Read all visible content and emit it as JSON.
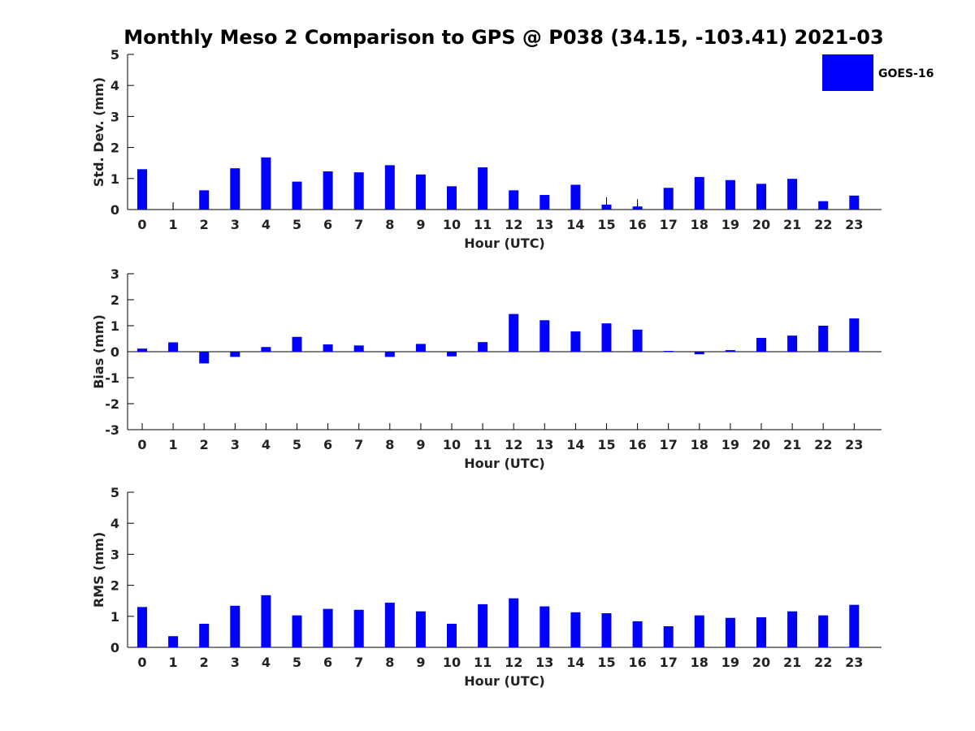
{
  "figure": {
    "title": "Monthly Meso 2 Comparison to GPS @ P038 (34.15, -103.41) 2021-03"
  },
  "legend": {
    "label": "GOES-16",
    "placement": "top-right",
    "color": "#0000ff"
  },
  "chart_data": [
    {
      "type": "bar",
      "xlabel": "Hour (UTC)",
      "ylabel": "Std. Dev. (mm)",
      "ylim": [
        0,
        5
      ],
      "yticks": [
        "0",
        "1",
        "2",
        "3",
        "4",
        "5"
      ],
      "categories": [
        "0",
        "1",
        "2",
        "3",
        "4",
        "5",
        "6",
        "7",
        "8",
        "9",
        "10",
        "11",
        "12",
        "13",
        "14",
        "15",
        "16",
        "17",
        "18",
        "19",
        "20",
        "21",
        "22",
        "23"
      ],
      "series": [
        {
          "name": "GOES-16",
          "color": "#0000ff",
          "values": [
            1.3,
            0.0,
            0.62,
            1.33,
            1.68,
            0.9,
            1.23,
            1.2,
            1.43,
            1.13,
            0.75,
            1.36,
            0.62,
            0.47,
            0.8,
            0.16,
            0.1,
            0.7,
            1.05,
            0.95,
            0.83,
            0.99,
            0.27,
            0.45
          ]
        }
      ],
      "error_caps": [
        1,
        15,
        16
      ]
    },
    {
      "type": "bar",
      "xlabel": "Hour (UTC)",
      "ylabel": "Bias (mm)",
      "ylim": [
        -3,
        3
      ],
      "yticks": [
        "-3",
        "-2",
        "-1",
        "0",
        "1",
        "2",
        "3"
      ],
      "categories": [
        "0",
        "1",
        "2",
        "3",
        "4",
        "5",
        "6",
        "7",
        "8",
        "9",
        "10",
        "11",
        "12",
        "13",
        "14",
        "15",
        "16",
        "17",
        "18",
        "19",
        "20",
        "21",
        "22",
        "23"
      ],
      "series": [
        {
          "name": "GOES-16",
          "color": "#0000ff",
          "values": [
            0.12,
            0.36,
            -0.45,
            -0.2,
            0.18,
            0.57,
            0.28,
            0.24,
            -0.2,
            0.3,
            -0.18,
            0.37,
            1.45,
            1.21,
            0.78,
            1.09,
            0.85,
            0.03,
            -0.1,
            0.06,
            0.53,
            0.62,
            1.0,
            1.28
          ]
        }
      ],
      "error_caps": []
    },
    {
      "type": "bar",
      "xlabel": "Hour (UTC)",
      "ylabel": "RMS (mm)",
      "ylim": [
        0,
        5
      ],
      "yticks": [
        "0",
        "1",
        "2",
        "3",
        "4",
        "5"
      ],
      "categories": [
        "0",
        "1",
        "2",
        "3",
        "4",
        "5",
        "6",
        "7",
        "8",
        "9",
        "10",
        "11",
        "12",
        "13",
        "14",
        "15",
        "16",
        "17",
        "18",
        "19",
        "20",
        "21",
        "22",
        "23"
      ],
      "series": [
        {
          "name": "GOES-16",
          "color": "#0000ff",
          "values": [
            1.3,
            0.36,
            0.76,
            1.34,
            1.68,
            1.03,
            1.24,
            1.21,
            1.44,
            1.16,
            0.76,
            1.39,
            1.58,
            1.32,
            1.13,
            1.1,
            0.84,
            0.68,
            1.03,
            0.95,
            0.97,
            1.16,
            1.03,
            1.37
          ]
        }
      ],
      "error_caps": []
    }
  ]
}
